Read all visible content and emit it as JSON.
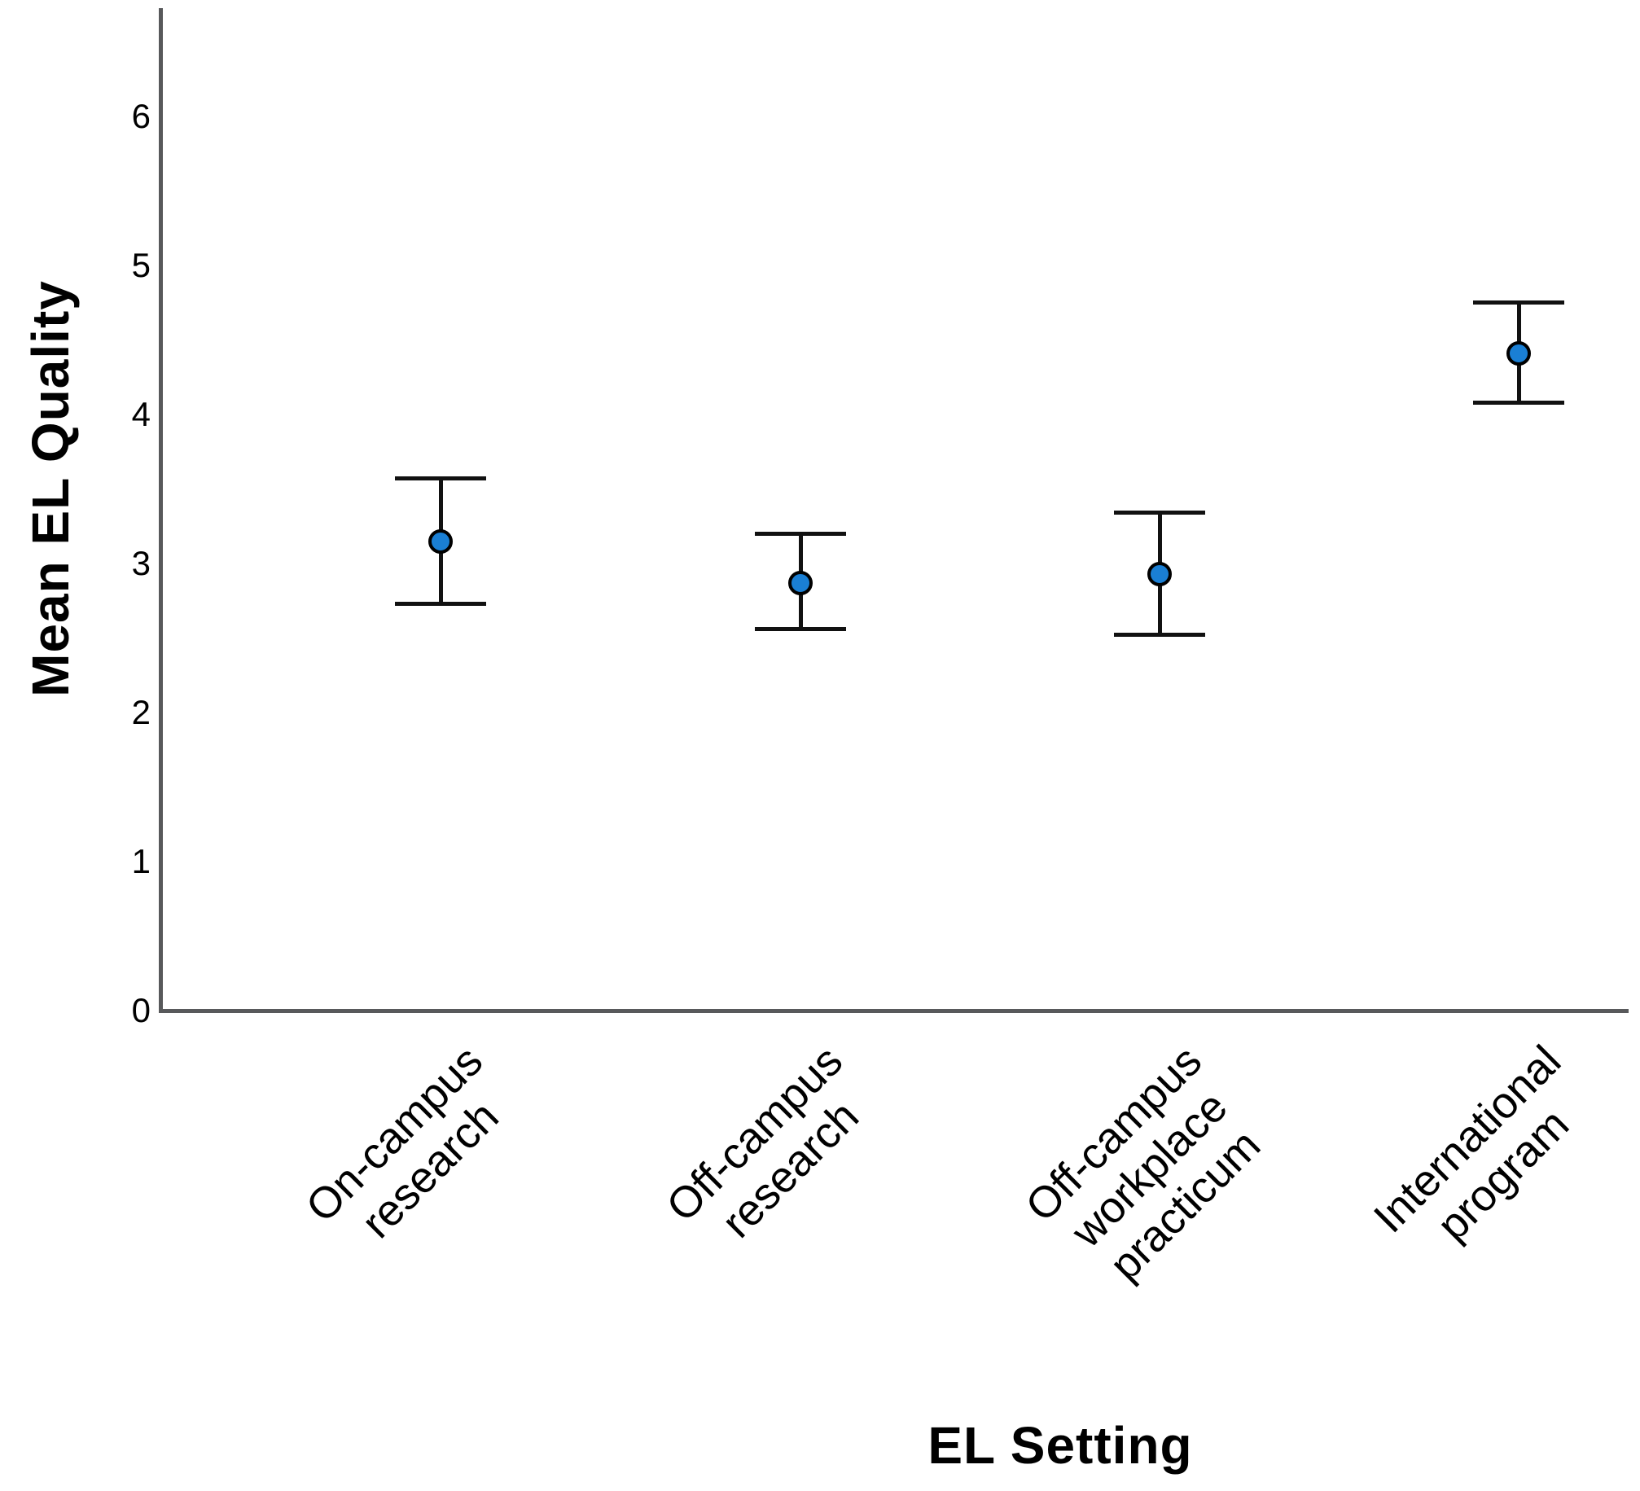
{
  "figure": {
    "background": "#ffffff"
  },
  "chart_data": {
    "type": "scatter",
    "subtype": "mean-with-error-bars",
    "title": "",
    "xlabel": "EL Setting",
    "ylabel": "Mean EL Quality",
    "categories": [
      "On-campus research",
      "Off-campus research",
      "Off-campus workplace practicum",
      "International program"
    ],
    "category_label_lines": [
      [
        "On-campus",
        "research"
      ],
      [
        "Off-campus",
        "research"
      ],
      [
        "Off-campus",
        "workplace",
        "practicum"
      ],
      [
        "International",
        "program"
      ]
    ],
    "series": [
      {
        "name": "Mean EL Quality",
        "means": [
          3.15,
          2.87,
          2.93,
          4.41
        ],
        "ci_low": [
          2.73,
          2.56,
          2.52,
          4.08
        ],
        "ci_high": [
          3.57,
          3.2,
          3.34,
          4.75
        ]
      }
    ],
    "yticks": [
      0,
      1,
      2,
      3,
      4,
      5,
      6
    ],
    "ylim": [
      0,
      6.7
    ],
    "grid": false,
    "legend": "none",
    "colors": {
      "marker_fill": "#1a7fd4",
      "marker_outline": "#000000",
      "error_bar": "#111111",
      "axis": "#58595b",
      "text": "#000000"
    }
  }
}
